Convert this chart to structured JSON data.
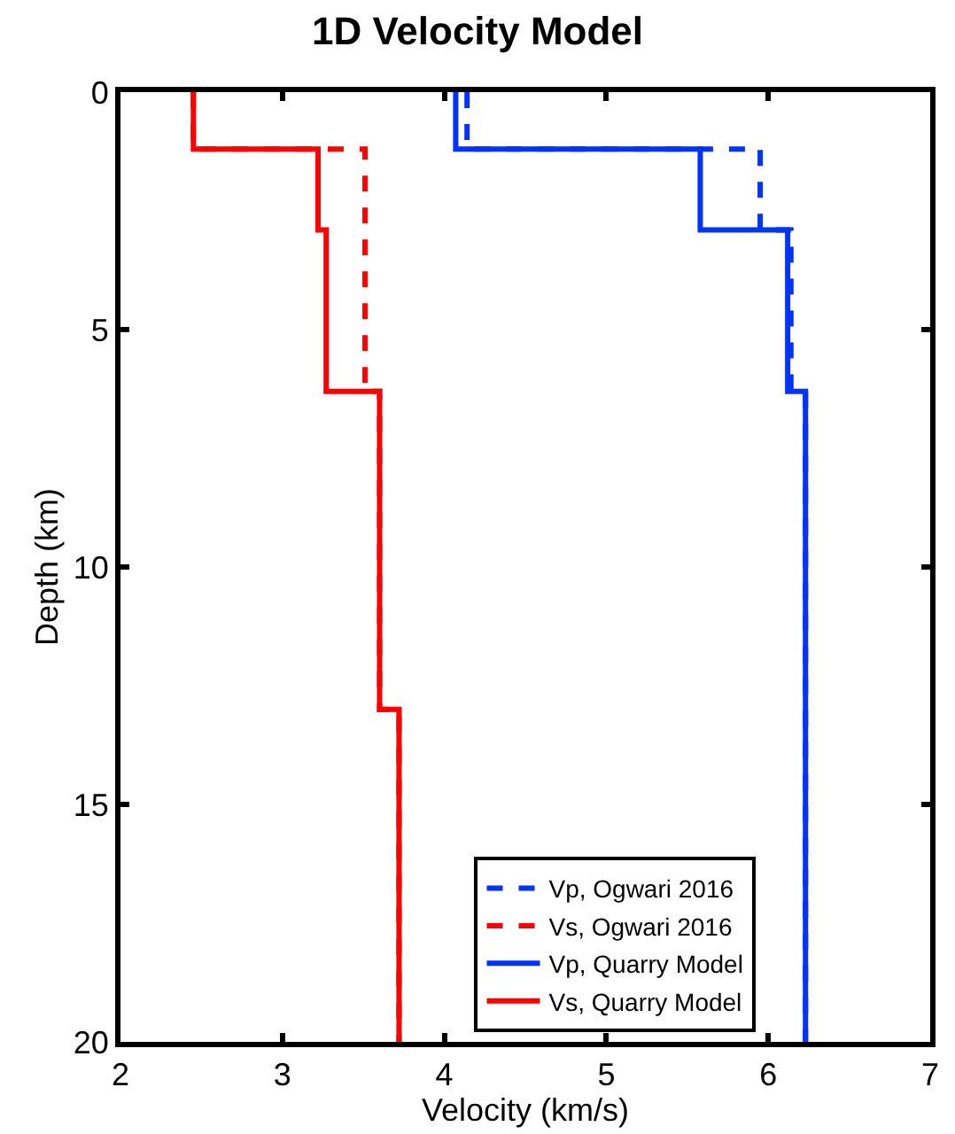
{
  "chart_data": {
    "type": "line",
    "title": "1D Velocity Model",
    "xlabel": "Velocity (km/s)",
    "ylabel": "Depth (km)",
    "xlim": [
      2,
      7
    ],
    "xticks": [
      2,
      3,
      4,
      5,
      6,
      7
    ],
    "ylim": [
      20,
      0
    ],
    "yticks": [
      0,
      5,
      10,
      15,
      20
    ],
    "legend": "bottom right",
    "marker": "none",
    "series": [
      {
        "name": "Vp, Ogwari 2016",
        "color": "#0033ff",
        "line_style": "dashed",
        "x": [
          4.14,
          4.14,
          5.95,
          5.95,
          6.14,
          6.14,
          6.23,
          6.23
        ],
        "values": [
          0,
          1.2,
          1.2,
          2.9,
          2.9,
          6.3,
          6.3,
          20
        ]
      },
      {
        "name": "Vs, Ogwari 2016",
        "color": "#ff0000",
        "line_style": "dashed",
        "x": [
          2.45,
          2.45,
          3.51,
          3.51,
          3.6,
          3.6,
          3.72,
          3.72
        ],
        "values": [
          0,
          1.2,
          1.2,
          6.3,
          6.3,
          13,
          13,
          20
        ]
      },
      {
        "name": "Vp, Quarry Model",
        "color": "#0033ff",
        "line_style": "solid",
        "x": [
          4.07,
          4.07,
          5.58,
          5.58,
          6.12,
          6.12,
          6.23,
          6.23
        ],
        "values": [
          0,
          1.2,
          1.2,
          2.9,
          2.9,
          6.3,
          6.3,
          20
        ]
      },
      {
        "name": "Vs, Quarry Model",
        "color": "#ff0000",
        "line_style": "solid",
        "x": [
          2.45,
          2.45,
          3.22,
          3.22,
          3.27,
          3.27,
          3.6,
          3.6,
          3.72,
          3.72
        ],
        "values": [
          0,
          1.2,
          1.2,
          2.9,
          2.9,
          6.3,
          6.3,
          13,
          13,
          20
        ]
      }
    ]
  }
}
